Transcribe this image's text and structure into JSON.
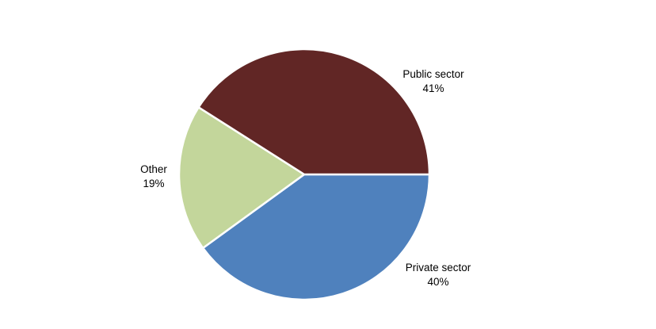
{
  "chart_data": {
    "type": "pie",
    "title": "",
    "start_angle_deg": 0,
    "direction": "clockwise",
    "legend": "none",
    "labels_position": "outside",
    "separator_color": "#ffffff",
    "slices": [
      {
        "label": "Private sector",
        "value": 40,
        "pct_label": "40%",
        "color": "#4F81BD"
      },
      {
        "label": "Other",
        "value": 19,
        "pct_label": "19%",
        "color": "#C3D69B"
      },
      {
        "label": "Public sector",
        "value": 41,
        "pct_label": "41%",
        "color": "#612625"
      }
    ]
  }
}
